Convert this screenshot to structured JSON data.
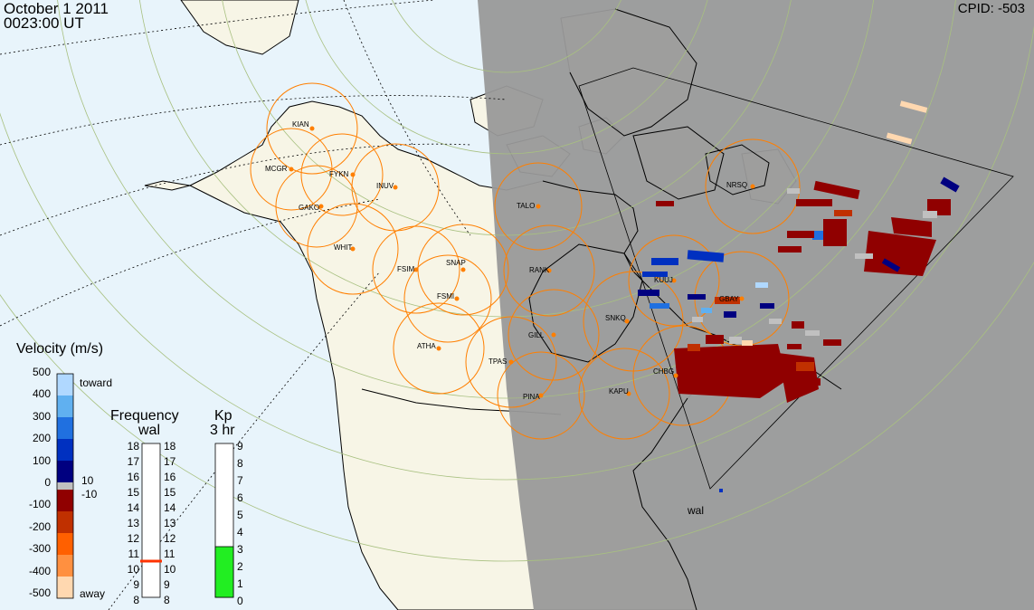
{
  "header": {
    "date": "October  1 2011",
    "time": "0023:00 UT",
    "cpid": "CPID:  -503"
  },
  "velocity_legend": {
    "title": "Velocity (m/s)",
    "ticks": [
      "500",
      "400",
      "300",
      "200",
      "100",
      "0",
      "-100",
      "-200",
      "-300",
      "-400",
      "-500"
    ],
    "toward": "toward",
    "away": "away",
    "gs_pos": "10",
    "gs_neg": "-10"
  },
  "frequency_legend": {
    "title": "Frequency",
    "subtitle": "wal",
    "ticks": [
      "18",
      "17",
      "16",
      "15",
      "14",
      "13",
      "12",
      "11",
      "10",
      "9",
      "8"
    ],
    "current": 11
  },
  "kp_legend": {
    "title": "Kp",
    "subtitle": "3 hr",
    "ticks": [
      "9",
      "8",
      "7",
      "6",
      "5",
      "4",
      "3",
      "2",
      "1",
      "0"
    ],
    "value": 3
  },
  "stations": [
    {
      "name": "KIAN"
    },
    {
      "name": "MCGR"
    },
    {
      "name": "FYKN"
    },
    {
      "name": "GAKO"
    },
    {
      "name": "INUV"
    },
    {
      "name": "WHIT"
    },
    {
      "name": "FSIM"
    },
    {
      "name": "SNAP"
    },
    {
      "name": "FSMI"
    },
    {
      "name": "ATHA"
    },
    {
      "name": "TALO"
    },
    {
      "name": "RANK"
    },
    {
      "name": "GILL"
    },
    {
      "name": "TPAS"
    },
    {
      "name": "PINA"
    },
    {
      "name": "SNKQ"
    },
    {
      "name": "KUUJ"
    },
    {
      "name": "GBAY"
    },
    {
      "name": "CHBG"
    },
    {
      "name": "KAPU"
    },
    {
      "name": "NRSQ"
    }
  ],
  "radar": {
    "name": "wal"
  },
  "colors": {
    "ocean": "#e8f4fb",
    "land": "#f7f5e6",
    "night": "#999999",
    "fov_circle": "#ff7f00",
    "grid": "#a8c080",
    "velocity_scale": [
      "#ffd8b0",
      "#ff9040",
      "#ff6000",
      "#c03000",
      "#900000",
      "#c0c0c0",
      "#000080",
      "#0030c0",
      "#2070e0",
      "#60b0f0",
      "#b0d8ff"
    ],
    "kp_fill": "#22ee22",
    "freq_marker": "#ff3300"
  }
}
